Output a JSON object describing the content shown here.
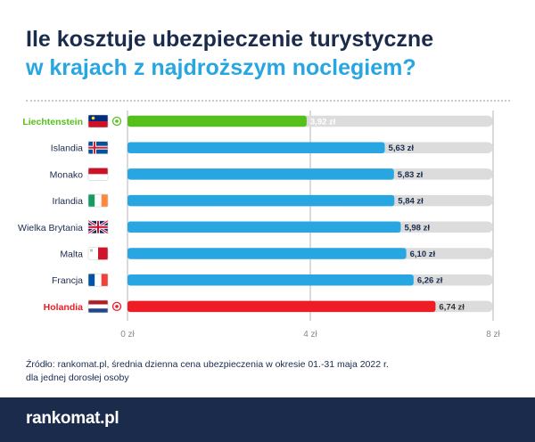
{
  "title": {
    "line1": "Ile kosztuje ubezpieczenie turystyczne",
    "line2": "w krajach z najdroższym noclegiem?"
  },
  "source": {
    "line1": "Źródło: rankomat.pl, średnia dzienna cena ubezpieczenia w okresie 01.-31 maja 2022 r.",
    "line2": "dla jednej dorosłej osoby"
  },
  "footer": {
    "logo": "rankomat.pl"
  },
  "colors": {
    "min": "#55c01b",
    "max": "#ee1c25",
    "default": "#27a6e1",
    "track": "#dcdcdc",
    "label_dark": "#1a2b4c",
    "axis": "#b5b5b5"
  },
  "chart_data": {
    "type": "bar",
    "orientation": "horizontal",
    "title": "Ile kosztuje ubezpieczenie turystyczne w krajach z najdroższym noclegiem?",
    "categories": [
      "Liechtenstein",
      "Islandia",
      "Monako",
      "Irlandia",
      "Wielka Brytania",
      "Malta",
      "Francja",
      "Holandia"
    ],
    "values": [
      3.92,
      5.63,
      5.83,
      5.84,
      5.98,
      6.1,
      6.26,
      6.74
    ],
    "value_labels": [
      "3,92 zł",
      "5,63 zł",
      "5,83 zł",
      "5,84 zł",
      "5,98 zł",
      "6,10 zł",
      "6,26 zł",
      "6,74 zł"
    ],
    "flags": [
      "flag-liechtenstein-icon",
      "flag-iceland-icon",
      "flag-monaco-icon",
      "flag-ireland-icon",
      "flag-uk-icon",
      "flag-malta-icon",
      "flag-france-icon",
      "flag-netherlands-icon"
    ],
    "highlight": [
      "min",
      "default",
      "default",
      "default",
      "default",
      "default",
      "default",
      "max"
    ],
    "xlim": [
      0,
      8
    ],
    "xticks": [
      0,
      4,
      8
    ],
    "xtick_labels": [
      "0 zł",
      "4 zł",
      "8 zł"
    ],
    "grid": true
  }
}
